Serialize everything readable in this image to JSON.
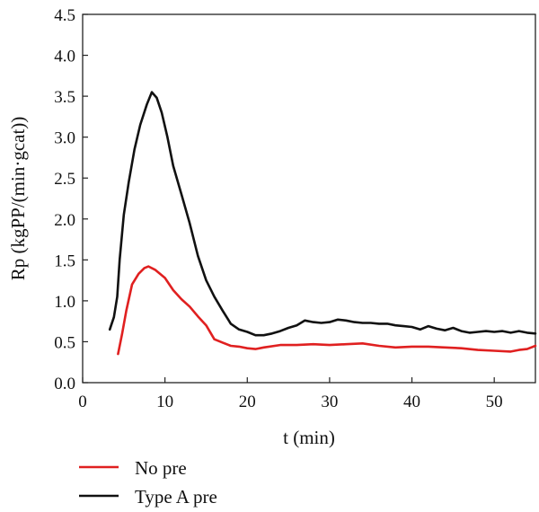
{
  "chart_data": {
    "type": "line",
    "xlabel": "t (min)",
    "ylabel": "Rp (kgPP/(min·gcat))",
    "xlim": [
      0,
      55
    ],
    "ylim": [
      0,
      4.5
    ],
    "xticks": [
      "0",
      "10",
      "20",
      "30",
      "40",
      "50"
    ],
    "yticks": [
      "0.0",
      "0.5",
      "1.0",
      "1.5",
      "2.0",
      "2.5",
      "3.0",
      "3.5",
      "4.0",
      "4.5"
    ],
    "grid": false,
    "legend": "bottom-left",
    "series": [
      {
        "name": "No pre",
        "color": "#e02020",
        "points": [
          [
            4.3,
            0.35
          ],
          [
            4.8,
            0.6
          ],
          [
            5.3,
            0.88
          ],
          [
            6,
            1.2
          ],
          [
            6.8,
            1.33
          ],
          [
            7.5,
            1.4
          ],
          [
            8,
            1.42
          ],
          [
            8.8,
            1.38
          ],
          [
            10,
            1.28
          ],
          [
            11,
            1.13
          ],
          [
            12,
            1.02
          ],
          [
            13,
            0.93
          ],
          [
            14,
            0.81
          ],
          [
            15,
            0.7
          ],
          [
            16,
            0.53
          ],
          [
            17,
            0.49
          ],
          [
            18,
            0.45
          ],
          [
            19,
            0.44
          ],
          [
            20,
            0.42
          ],
          [
            21,
            0.41
          ],
          [
            22,
            0.43
          ],
          [
            24,
            0.46
          ],
          [
            26,
            0.46
          ],
          [
            28,
            0.47
          ],
          [
            30,
            0.46
          ],
          [
            32,
            0.47
          ],
          [
            34,
            0.48
          ],
          [
            36,
            0.45
          ],
          [
            38,
            0.43
          ],
          [
            40,
            0.44
          ],
          [
            42,
            0.44
          ],
          [
            44,
            0.43
          ],
          [
            46,
            0.42
          ],
          [
            48,
            0.4
          ],
          [
            50,
            0.39
          ],
          [
            52,
            0.38
          ],
          [
            53,
            0.4
          ],
          [
            54,
            0.41
          ],
          [
            55,
            0.45
          ]
        ]
      },
      {
        "name": "Type A pre",
        "color": "#111111",
        "points": [
          [
            3.3,
            0.65
          ],
          [
            3.8,
            0.8
          ],
          [
            4.2,
            1.05
          ],
          [
            4.5,
            1.5
          ],
          [
            5,
            2.05
          ],
          [
            5.6,
            2.45
          ],
          [
            6.3,
            2.85
          ],
          [
            7,
            3.15
          ],
          [
            7.8,
            3.4
          ],
          [
            8.4,
            3.55
          ],
          [
            9,
            3.48
          ],
          [
            9.6,
            3.3
          ],
          [
            10.3,
            3.0
          ],
          [
            11,
            2.65
          ],
          [
            12,
            2.3
          ],
          [
            13,
            1.95
          ],
          [
            14,
            1.55
          ],
          [
            15,
            1.25
          ],
          [
            16,
            1.05
          ],
          [
            17,
            0.88
          ],
          [
            18,
            0.72
          ],
          [
            19,
            0.65
          ],
          [
            20,
            0.62
          ],
          [
            21,
            0.58
          ],
          [
            22,
            0.58
          ],
          [
            23,
            0.6
          ],
          [
            24,
            0.63
          ],
          [
            25,
            0.67
          ],
          [
            26,
            0.7
          ],
          [
            27,
            0.76
          ],
          [
            28,
            0.74
          ],
          [
            29,
            0.73
          ],
          [
            30,
            0.74
          ],
          [
            31,
            0.77
          ],
          [
            32,
            0.76
          ],
          [
            33,
            0.74
          ],
          [
            34,
            0.73
          ],
          [
            35,
            0.73
          ],
          [
            36,
            0.72
          ],
          [
            37,
            0.72
          ],
          [
            38,
            0.7
          ],
          [
            39,
            0.69
          ],
          [
            40,
            0.68
          ],
          [
            41,
            0.65
          ],
          [
            42,
            0.69
          ],
          [
            43,
            0.66
          ],
          [
            44,
            0.64
          ],
          [
            45,
            0.67
          ],
          [
            46,
            0.63
          ],
          [
            47,
            0.61
          ],
          [
            48,
            0.62
          ],
          [
            49,
            0.63
          ],
          [
            50,
            0.62
          ],
          [
            51,
            0.63
          ],
          [
            52,
            0.61
          ],
          [
            53,
            0.63
          ],
          [
            54,
            0.61
          ],
          [
            55,
            0.6
          ]
        ]
      }
    ]
  }
}
